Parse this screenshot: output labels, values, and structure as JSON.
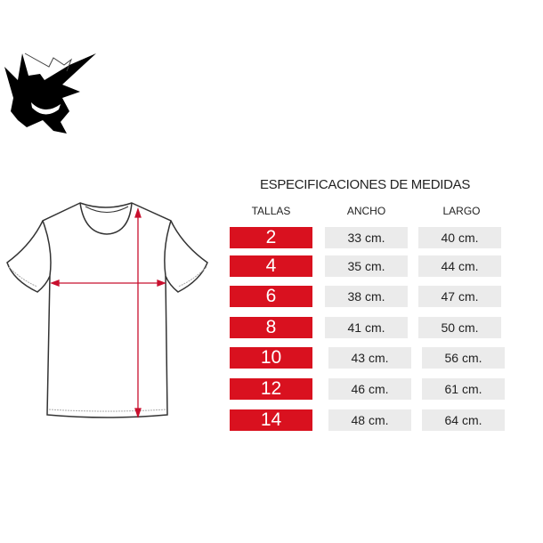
{
  "title": "ESPECIFICACIONES DE MEDIDAS",
  "headers": {
    "size": "TALLAS",
    "width": "ANCHO",
    "length": "LARGO"
  },
  "colors": {
    "size_bg": "#d9111f",
    "value_bg": "#ebebeb",
    "arrow": "#c8102e"
  },
  "rows": [
    {
      "size": "2",
      "width": "33 cm.",
      "length": "40 cm."
    },
    {
      "size": "4",
      "width": "35 cm.",
      "length": "44 cm."
    },
    {
      "size": "6",
      "width": "38 cm.",
      "length": "47 cm."
    },
    {
      "size": "8",
      "width": "41 cm.",
      "length": "50 cm."
    },
    {
      "size": "10",
      "width": "43 cm.",
      "length": "56 cm."
    },
    {
      "size": "12",
      "width": "46 cm.",
      "length": "61 cm."
    },
    {
      "size": "14",
      "width": "48 cm.",
      "length": "64 cm."
    }
  ]
}
